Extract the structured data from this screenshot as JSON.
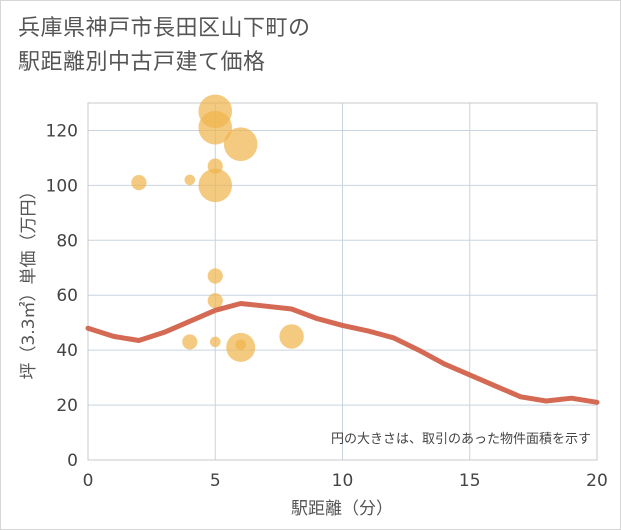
{
  "chart_data": {
    "type": "scatter",
    "title_lines": [
      "兵庫県神戸市長田区山下町の",
      "駅距離別中古戸建て価格"
    ],
    "xlabel": "駅距離（分）",
    "ylabel": "坪（3.3㎡）単価（万円）",
    "xlim": [
      0,
      20
    ],
    "ylim": [
      0,
      130
    ],
    "xticks": [
      "0",
      "5",
      "10",
      "15",
      "20"
    ],
    "yticks": [
      "0",
      "20",
      "40",
      "60",
      "80",
      "100",
      "120"
    ],
    "xtick_values": [
      0,
      5,
      10,
      15,
      20
    ],
    "ytick_values": [
      0,
      20,
      40,
      60,
      80,
      100,
      120
    ],
    "grid": true,
    "note": "円の大きさは、取引のあった物件面積を示す",
    "bubble_color": "#f0b44c",
    "line_color": "#d46a54",
    "points": [
      {
        "x": 2,
        "y": 101,
        "size": 2
      },
      {
        "x": 4,
        "y": 102,
        "size": 1
      },
      {
        "x": 4,
        "y": 43,
        "size": 2
      },
      {
        "x": 5,
        "y": 127,
        "size": 6
      },
      {
        "x": 5,
        "y": 121,
        "size": 6
      },
      {
        "x": 5,
        "y": 107,
        "size": 2
      },
      {
        "x": 5,
        "y": 100,
        "size": 6
      },
      {
        "x": 5,
        "y": 67,
        "size": 2
      },
      {
        "x": 5,
        "y": 58,
        "size": 2
      },
      {
        "x": 5,
        "y": 43,
        "size": 1
      },
      {
        "x": 6,
        "y": 115,
        "size": 6
      },
      {
        "x": 6,
        "y": 41,
        "size": 5
      },
      {
        "x": 6,
        "y": 42,
        "size": 1
      },
      {
        "x": 8,
        "y": 45,
        "size": 4
      }
    ],
    "trend": {
      "x": [
        0,
        1,
        2,
        3,
        4,
        5,
        6,
        7,
        8,
        9,
        10,
        11,
        12,
        13,
        14,
        15,
        16,
        17,
        18,
        19,
        20
      ],
      "y": [
        48,
        45,
        43.5,
        46.5,
        50.5,
        54.5,
        57,
        56,
        55,
        51.5,
        49,
        47,
        44.5,
        40,
        35,
        31,
        27,
        23,
        21.5,
        22.5,
        21
      ]
    }
  }
}
